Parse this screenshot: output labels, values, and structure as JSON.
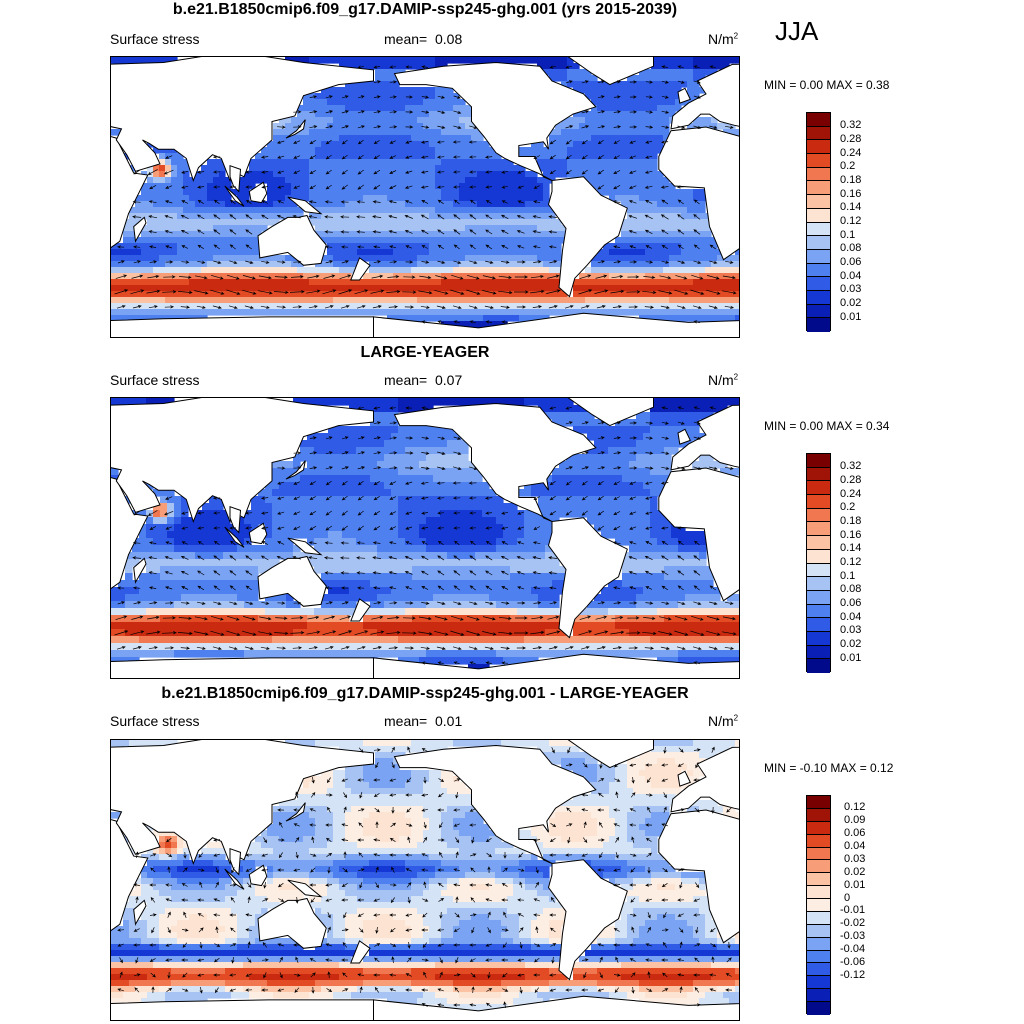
{
  "season": "JJA",
  "colors": {
    "seq": [
      "#000a8a",
      "#0a1fb5",
      "#1538d4",
      "#2f5be6",
      "#4f80f0",
      "#7aa3f3",
      "#a7c3f3",
      "#d5e3f6",
      "#fde3d2",
      "#fbc2a3",
      "#f79e78",
      "#f0774f",
      "#e34b25",
      "#c92a10",
      "#a01307",
      "#790000"
    ],
    "diff": [
      "#000a8a",
      "#0a1fb5",
      "#1538d4",
      "#2f5be6",
      "#4f80f0",
      "#7aa3f3",
      "#a7c3f3",
      "#d5e3f6",
      "#fdeee4",
      "#fde3d2",
      "#fbc2a3",
      "#f79e78",
      "#f0774f",
      "#e34b25",
      "#c92a10",
      "#a01307",
      "#790000"
    ]
  },
  "panels": [
    {
      "title": "b.e21.B1850cmip6.f09_g17.DAMIP-ssp245-ghg.001 (yrs 2015-2039)",
      "variable": "Surface stress",
      "mean_label": "mean=",
      "mean_value": "0.08",
      "units": "N/m",
      "units_exp": "2",
      "minmax": "MIN =   0.00 MAX =   0.38",
      "ticks": [
        "0.32",
        "0.28",
        "0.24",
        "0.2",
        "0.18",
        "0.16",
        "0.14",
        "0.12",
        "0.1",
        "0.08",
        "0.06",
        "0.04",
        "0.03",
        "0.02",
        "0.01"
      ]
    },
    {
      "title": "LARGE-YEAGER",
      "variable": "Surface stress",
      "mean_label": "mean=",
      "mean_value": "0.07",
      "units": "N/m",
      "units_exp": "2",
      "minmax": "MIN =   0.00 MAX =   0.34",
      "ticks": [
        "0.32",
        "0.28",
        "0.24",
        "0.2",
        "0.18",
        "0.16",
        "0.14",
        "0.12",
        "0.1",
        "0.08",
        "0.06",
        "0.04",
        "0.03",
        "0.02",
        "0.01"
      ]
    },
    {
      "title": "b.e21.B1850cmip6.f09_g17.DAMIP-ssp245-ghg.001 - LARGE-YEAGER",
      "variable": "Surface stress",
      "mean_label": "mean=",
      "mean_value": "0.01",
      "units": "N/m",
      "units_exp": "2",
      "minmax": "MIN =  -0.10 MAX =   0.12",
      "ticks": [
        "0.12",
        "0.09",
        "0.06",
        "0.04",
        "0.03",
        "0.02",
        "0.01",
        "0",
        "-0.01",
        "-0.02",
        "-0.03",
        "-0.04",
        "-0.06",
        "-0.12"
      ]
    }
  ]
}
